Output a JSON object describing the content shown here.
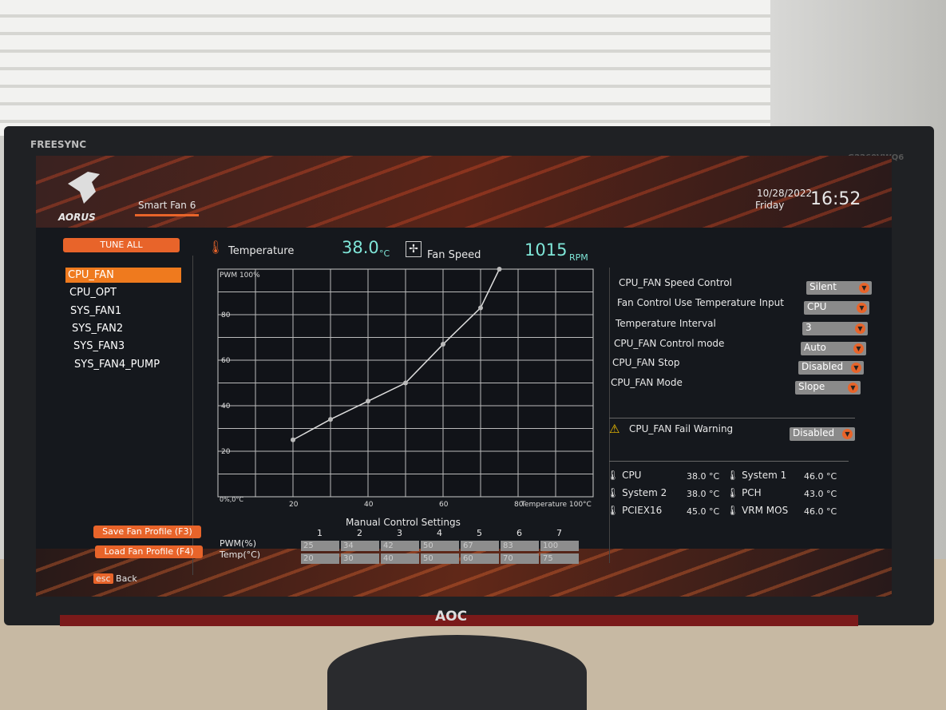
{
  "monitor": {
    "badge": "FREESYNC",
    "model": "G2260VWQ6",
    "brand": "AOC"
  },
  "header": {
    "logo": "AORUS",
    "tab": "Smart Fan 6",
    "date": "10/28/2022",
    "day": "Friday",
    "time": "16:52"
  },
  "sidebar": {
    "tune_all": "TUNE ALL",
    "fans": [
      "CPU_FAN",
      "CPU_OPT",
      "SYS_FAN1",
      "SYS_FAN2",
      "SYS_FAN3",
      "SYS_FAN4_PUMP"
    ],
    "selected": 0,
    "save": "Save Fan Profile (F3)",
    "load": "Load Fan Profile (F4)",
    "esc_key": "esc",
    "back": "Back"
  },
  "readout": {
    "temp_label": "Temperature",
    "temp_value": "38.0",
    "temp_unit": "°C",
    "fan_label": "Fan Speed",
    "fan_value": "1015",
    "fan_unit": "RPM"
  },
  "chart_data": {
    "type": "line",
    "ylabel": "PWM 100%",
    "xlabel": "Temperature 100°C",
    "origin_label": "0%,0°C",
    "x_ticks": [
      "20",
      "40",
      "60",
      "80"
    ],
    "y_ticks": [
      "20",
      "40",
      "60",
      "80"
    ],
    "xlim": [
      0,
      100
    ],
    "ylim": [
      0,
      100
    ],
    "grid": true,
    "points": [
      {
        "x": 20,
        "y": 25
      },
      {
        "x": 30,
        "y": 34
      },
      {
        "x": 40,
        "y": 42
      },
      {
        "x": 50,
        "y": 50
      },
      {
        "x": 60,
        "y": 67
      },
      {
        "x": 70,
        "y": 83
      },
      {
        "x": 75,
        "y": 100
      }
    ]
  },
  "manual": {
    "title": "Manual Control Settings",
    "columns": [
      "1",
      "2",
      "3",
      "4",
      "5",
      "6",
      "7"
    ],
    "pwm_label": "PWM(%)",
    "temp_label": "Temp(°C)",
    "pwm": [
      "25",
      "34",
      "42",
      "50",
      "67",
      "83",
      "100"
    ],
    "temp": [
      "20",
      "30",
      "40",
      "50",
      "60",
      "70",
      "75"
    ]
  },
  "settings": [
    {
      "label": "CPU_FAN Speed Control",
      "value": "Silent"
    },
    {
      "label": "Fan Control Use Temperature Input",
      "value": "CPU"
    },
    {
      "label": "Temperature Interval",
      "value": "3"
    },
    {
      "label": "CPU_FAN Control mode",
      "value": "Auto"
    },
    {
      "label": "CPU_FAN Stop",
      "value": "Disabled"
    },
    {
      "label": "CPU_FAN Mode",
      "value": "Slope"
    }
  ],
  "warning": {
    "label": "CPU_FAN Fail Warning",
    "value": "Disabled"
  },
  "temps": [
    {
      "name": "CPU",
      "value": "38.0 °C"
    },
    {
      "name": "System 1",
      "value": "46.0 °C"
    },
    {
      "name": "System 2",
      "value": "38.0 °C"
    },
    {
      "name": "PCH",
      "value": "43.0 °C"
    },
    {
      "name": "PCIEX16",
      "value": "45.0 °C"
    },
    {
      "name": "VRM MOS",
      "value": "46.0 °C"
    }
  ],
  "colors": {
    "accent": "#e8642a",
    "selected": "#ef7a1e",
    "readout": "#7fe6d8"
  }
}
